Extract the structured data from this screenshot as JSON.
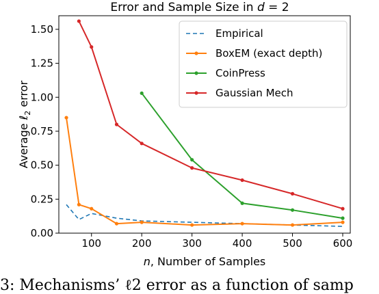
{
  "chart_data": {
    "type": "line",
    "title": "Error and Sample Size in d = 2",
    "xlabel": "n, Number of Samples",
    "ylabel": "Average ℓ2 error",
    "xlim": [
      35,
      615
    ],
    "ylim": [
      0,
      1.6
    ],
    "xticks": [
      100,
      200,
      300,
      400,
      500,
      600
    ],
    "yticks": [
      0.0,
      0.25,
      0.5,
      0.75,
      1.0,
      1.25,
      1.5
    ],
    "xtick_labels": [
      "100",
      "200",
      "300",
      "400",
      "500",
      "600"
    ],
    "ytick_labels": [
      "0.00",
      "0.25",
      "0.50",
      "0.75",
      "1.00",
      "1.25",
      "1.50"
    ],
    "legend_position": "upper right",
    "series": [
      {
        "name": "Empirical",
        "color": "#1f77b4",
        "style": "dashed",
        "markers": false,
        "x": [
          50,
          75,
          100,
          150,
          200,
          300,
          400,
          500,
          600
        ],
        "y": [
          0.21,
          0.1,
          0.145,
          0.11,
          0.09,
          0.08,
          0.07,
          0.06,
          0.05
        ]
      },
      {
        "name": "BoxEM (exact depth)",
        "color": "#ff7f0e",
        "style": "solid",
        "markers": true,
        "x": [
          50,
          75,
          100,
          150,
          200,
          300,
          400,
          500,
          600
        ],
        "y": [
          0.85,
          0.21,
          0.18,
          0.07,
          0.08,
          0.06,
          0.07,
          0.06,
          0.08
        ]
      },
      {
        "name": "CoinPress",
        "color": "#2ca02c",
        "style": "solid",
        "markers": true,
        "x": [
          200,
          300,
          400,
          500,
          600
        ],
        "y": [
          1.03,
          0.54,
          0.22,
          0.17,
          0.11
        ]
      },
      {
        "name": "Gaussian Mech",
        "color": "#d62728",
        "style": "solid",
        "markers": true,
        "x": [
          75,
          100,
          150,
          200,
          300,
          400,
          500,
          600
        ],
        "y": [
          1.56,
          1.37,
          0.8,
          0.66,
          0.48,
          0.39,
          0.29,
          0.18
        ]
      }
    ]
  },
  "caption": "3: Mechanisms’ ℓ2 error as a function of samp"
}
